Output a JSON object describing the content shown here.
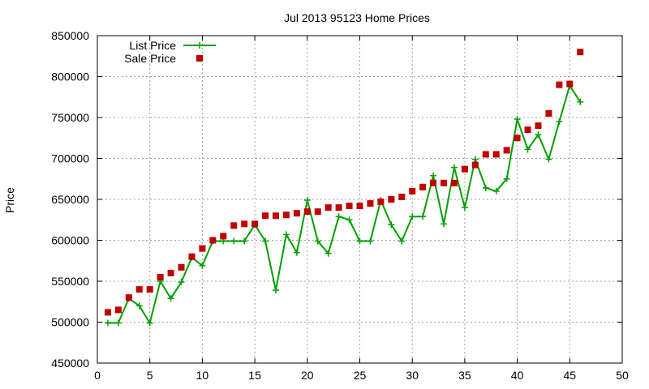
{
  "chart_data": {
    "type": "line",
    "title": "Jul 2013 95123 Home Prices",
    "xlabel": "",
    "ylabel": "Price",
    "xlim": [
      0,
      50
    ],
    "ylim": [
      450000,
      850000
    ],
    "xticks": [
      0,
      5,
      10,
      15,
      20,
      25,
      30,
      35,
      40,
      45,
      50
    ],
    "yticks": [
      450000,
      500000,
      550000,
      600000,
      650000,
      700000,
      750000,
      800000,
      850000
    ],
    "grid": true,
    "legend_position": "top-left",
    "series": [
      {
        "name": "List Price",
        "style": "line-cross",
        "color": "#00a000",
        "x": [
          1,
          2,
          3,
          4,
          5,
          6,
          7,
          8,
          9,
          10,
          11,
          12,
          13,
          14,
          15,
          16,
          17,
          18,
          19,
          20,
          21,
          22,
          23,
          24,
          25,
          26,
          27,
          28,
          29,
          30,
          31,
          32,
          33,
          34,
          35,
          36,
          37,
          38,
          39,
          40,
          41,
          42,
          43,
          44,
          45,
          46
        ],
        "y": [
          499000,
          499000,
          529000,
          520000,
          499000,
          550000,
          529000,
          549000,
          579000,
          569000,
          599000,
          599000,
          599000,
          599000,
          619000,
          599000,
          539000,
          607000,
          585000,
          649000,
          599000,
          584000,
          629000,
          625000,
          599000,
          599000,
          649000,
          619000,
          599000,
          629000,
          629000,
          679000,
          620000,
          689000,
          640000,
          699000,
          664000,
          660000,
          675000,
          748000,
          711000,
          729000,
          699000,
          745000,
          789000,
          769000
        ]
      },
      {
        "name": "Sale Price",
        "style": "square",
        "color": "#c00000",
        "x": [
          1,
          2,
          3,
          4,
          5,
          6,
          7,
          8,
          9,
          10,
          11,
          12,
          13,
          14,
          15,
          16,
          17,
          18,
          19,
          20,
          21,
          22,
          23,
          24,
          25,
          26,
          27,
          28,
          29,
          30,
          31,
          32,
          33,
          34,
          35,
          36,
          37,
          38,
          39,
          40,
          41,
          42,
          43,
          44,
          45,
          46
        ],
        "y": [
          512000,
          515000,
          530000,
          540000,
          540000,
          555000,
          560000,
          567000,
          580000,
          590000,
          600000,
          605000,
          618000,
          620000,
          620000,
          630000,
          630000,
          631000,
          633000,
          635000,
          635000,
          640000,
          640000,
          642000,
          642000,
          645000,
          647000,
          650000,
          653000,
          660000,
          665000,
          670000,
          670000,
          670000,
          687000,
          692000,
          705000,
          705000,
          710000,
          725000,
          735000,
          740000,
          755000,
          790000,
          791000,
          830000
        ]
      }
    ]
  }
}
